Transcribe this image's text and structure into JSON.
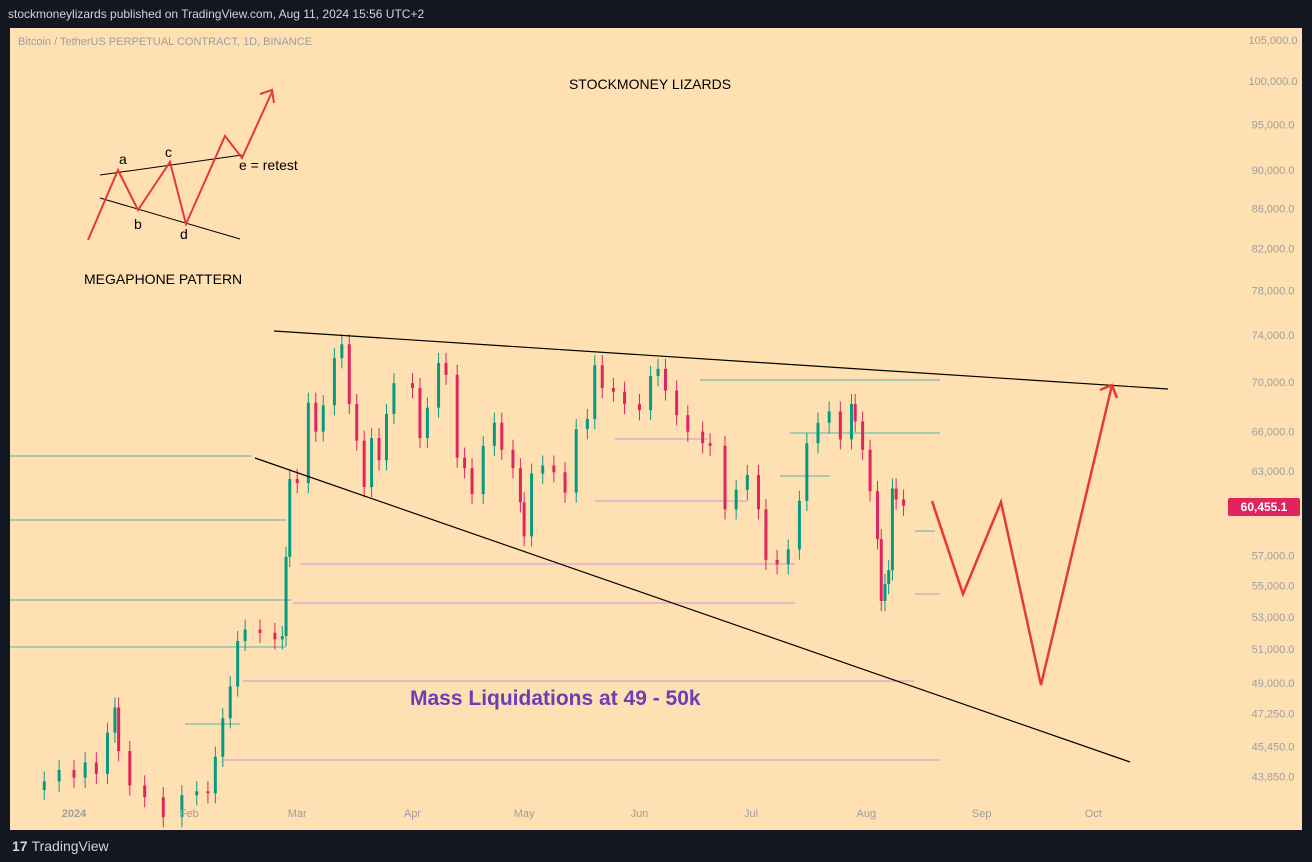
{
  "header": {
    "published": "stockmoneylizards published on TradingView.com, Aug 11, 2024 15:56 UTC+2"
  },
  "footer": {
    "logo_mark": "17",
    "logo_text": "TradingView"
  },
  "colors": {
    "up": "#089981",
    "down": "#e0245e",
    "background": "#ffe0b2",
    "annotation": "#e53935",
    "trendline": "#000000",
    "liquidation_text": "#6a3fb5",
    "price_badge": "#e0245e"
  },
  "chart_data": {
    "type": "candlestick",
    "symbol": "Bitcoin / TetherUS PERPETUAL CONTRACT, 1D, BINANCE",
    "title": "STOCKMONEY LIZARDS",
    "last_price": 60455.1,
    "last_price_label": "60,455.1",
    "y_scale": "log",
    "y_ticks": [
      {
        "v": 105000,
        "label": "105,000.0"
      },
      {
        "v": 100000,
        "label": "100,000.0"
      },
      {
        "v": 95000,
        "label": "95,000.0"
      },
      {
        "v": 90000,
        "label": "90,000.0"
      },
      {
        "v": 86000,
        "label": "86,000.0"
      },
      {
        "v": 82000,
        "label": "82,000.0"
      },
      {
        "v": 78000,
        "label": "78,000.0"
      },
      {
        "v": 74000,
        "label": "74,000.0"
      },
      {
        "v": 70000,
        "label": "70,000.0"
      },
      {
        "v": 66000,
        "label": "66,000.0"
      },
      {
        "v": 63000,
        "label": "63,000.0"
      },
      {
        "v": 57000,
        "label": "57,000.0"
      },
      {
        "v": 55000,
        "label": "55,000.0"
      },
      {
        "v": 53000,
        "label": "53,000.0"
      },
      {
        "v": 51000,
        "label": "51,000.0"
      },
      {
        "v": 49000,
        "label": "49,000.0"
      },
      {
        "v": 47250,
        "label": "47,250.0"
      },
      {
        "v": 45450,
        "label": "45,450.0"
      },
      {
        "v": 43850,
        "label": "43,850.0"
      }
    ],
    "x_ticks": [
      {
        "date": "2024-01-01",
        "label": "2024"
      },
      {
        "date": "2024-02-01",
        "label": "Feb"
      },
      {
        "date": "2024-03-01",
        "label": "Mar"
      },
      {
        "date": "2024-04-01",
        "label": "Apr"
      },
      {
        "date": "2024-05-01",
        "label": "May"
      },
      {
        "date": "2024-06-01",
        "label": "Jun"
      },
      {
        "date": "2024-07-01",
        "label": "Jul"
      },
      {
        "date": "2024-08-01",
        "label": "Aug"
      },
      {
        "date": "2024-09-01",
        "label": "Sep"
      },
      {
        "date": "2024-10-01",
        "label": "Oct"
      }
    ],
    "x_range": [
      "2023-12-22",
      "2024-10-12"
    ],
    "y_range": [
      43000,
      106500
    ],
    "close_series": [
      [
        "2023-12-24",
        43600
      ],
      [
        "2023-12-28",
        44200
      ],
      [
        "2024-01-01",
        43800
      ],
      [
        "2024-01-04",
        44600
      ],
      [
        "2024-01-07",
        44000
      ],
      [
        "2024-01-10",
        46200
      ],
      [
        "2024-01-12",
        47600
      ],
      [
        "2024-01-13",
        45200
      ],
      [
        "2024-01-16",
        43400
      ],
      [
        "2024-01-20",
        42800
      ],
      [
        "2024-01-25",
        41800
      ],
      [
        "2024-01-30",
        42900
      ],
      [
        "2024-02-03",
        43100
      ],
      [
        "2024-02-06",
        43000
      ],
      [
        "2024-02-08",
        44900
      ],
      [
        "2024-02-10",
        47000
      ],
      [
        "2024-02-12",
        48800
      ],
      [
        "2024-02-14",
        51500
      ],
      [
        "2024-02-16",
        52200
      ],
      [
        "2024-02-20",
        52000
      ],
      [
        "2024-02-24",
        51600
      ],
      [
        "2024-02-26",
        51800
      ],
      [
        "2024-02-27",
        56900
      ],
      [
        "2024-02-28",
        62400
      ],
      [
        "2024-03-01",
        62100
      ],
      [
        "2024-03-04",
        68300
      ],
      [
        "2024-03-06",
        66000
      ],
      [
        "2024-03-08",
        68100
      ],
      [
        "2024-03-11",
        72000
      ],
      [
        "2024-03-13",
        73200
      ],
      [
        "2024-03-15",
        68200
      ],
      [
        "2024-03-17",
        65300
      ],
      [
        "2024-03-19",
        61800
      ],
      [
        "2024-03-21",
        65500
      ],
      [
        "2024-03-23",
        63800
      ],
      [
        "2024-03-25",
        67400
      ],
      [
        "2024-03-27",
        69900
      ],
      [
        "2024-04-01",
        69500
      ],
      [
        "2024-04-03",
        65500
      ],
      [
        "2024-04-05",
        67900
      ],
      [
        "2024-04-08",
        71600
      ],
      [
        "2024-04-10",
        70600
      ],
      [
        "2024-04-13",
        64000
      ],
      [
        "2024-04-15",
        63200
      ],
      [
        "2024-04-17",
        61300
      ],
      [
        "2024-04-20",
        64900
      ],
      [
        "2024-04-23",
        66700
      ],
      [
        "2024-04-25",
        64600
      ],
      [
        "2024-04-28",
        63200
      ],
      [
        "2024-04-30",
        60700
      ],
      [
        "2024-05-01",
        58300
      ],
      [
        "2024-05-03",
        62800
      ],
      [
        "2024-05-06",
        63400
      ],
      [
        "2024-05-09",
        62900
      ],
      [
        "2024-05-12",
        61400
      ],
      [
        "2024-05-15",
        66200
      ],
      [
        "2024-05-18",
        67000
      ],
      [
        "2024-05-20",
        71400
      ],
      [
        "2024-05-22",
        69500
      ],
      [
        "2024-05-25",
        69200
      ],
      [
        "2024-05-28",
        68200
      ],
      [
        "2024-06-01",
        67700
      ],
      [
        "2024-06-04",
        70500
      ],
      [
        "2024-06-06",
        71100
      ],
      [
        "2024-06-08",
        69300
      ],
      [
        "2024-06-11",
        67300
      ],
      [
        "2024-06-14",
        66000
      ],
      [
        "2024-06-18",
        65100
      ],
      [
        "2024-06-20",
        64900
      ],
      [
        "2024-06-24",
        60200
      ],
      [
        "2024-06-27",
        61600
      ],
      [
        "2024-06-30",
        62700
      ],
      [
        "2024-07-03",
        60200
      ],
      [
        "2024-07-05",
        56700
      ],
      [
        "2024-07-08",
        56400
      ],
      [
        "2024-07-11",
        57400
      ],
      [
        "2024-07-14",
        60800
      ],
      [
        "2024-07-16",
        65100
      ],
      [
        "2024-07-19",
        66700
      ],
      [
        "2024-07-22",
        67600
      ],
      [
        "2024-07-25",
        65400
      ],
      [
        "2024-07-28",
        68200
      ],
      [
        "2024-07-29",
        66800
      ],
      [
        "2024-07-31",
        64600
      ],
      [
        "2024-08-02",
        61500
      ],
      [
        "2024-08-04",
        58100
      ],
      [
        "2024-08-05",
        54000
      ],
      [
        "2024-08-06",
        55100
      ],
      [
        "2024-08-07",
        56000
      ],
      [
        "2024-08-08",
        61700
      ],
      [
        "2024-08-09",
        60900
      ],
      [
        "2024-08-11",
        60455
      ]
    ]
  },
  "annotations": {
    "pattern_title": "MEGAPHONE PATTERN",
    "labels": {
      "a": "a",
      "b": "b",
      "c": "c",
      "d": "d",
      "e": "e = retest"
    },
    "liquidation_text": "Mass Liquidations at 49 - 50k"
  }
}
